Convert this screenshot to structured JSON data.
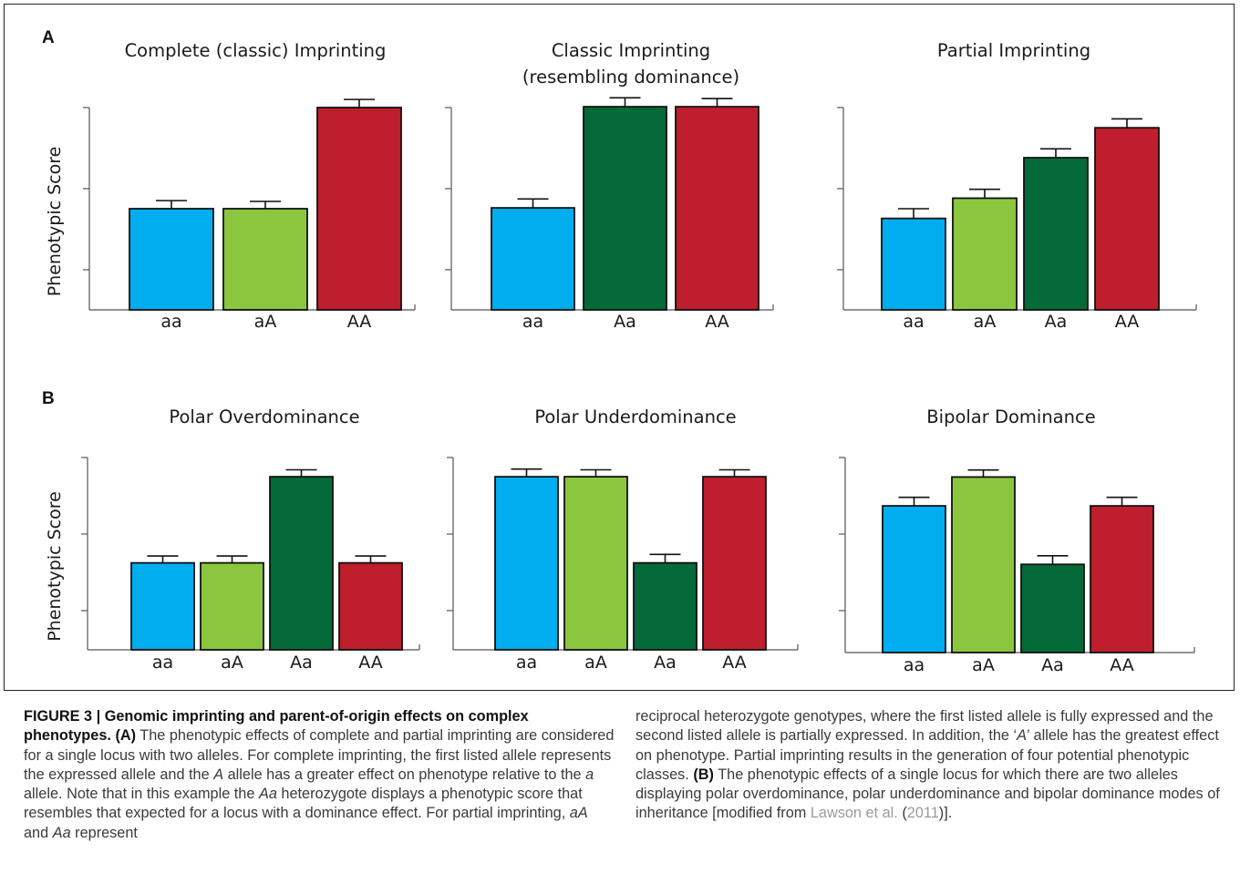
{
  "panels": [
    {
      "label": "A"
    },
    {
      "label": "B"
    }
  ],
  "ylabel": "Phenotypic Score",
  "colors": {
    "aa": "#00adef",
    "aA": "#8cc63f",
    "Aa": "#046a38",
    "AA": "#be1e2d",
    "axis": "#555555",
    "bar_edge": "#111111"
  },
  "chart_data": [
    {
      "type": "bar",
      "title": "Complete (classic) Imprinting",
      "categories": [
        "aa",
        "aA",
        "AA"
      ],
      "values": [
        1.25,
        1.25,
        2.5
      ],
      "errors": [
        0.1,
        0.09,
        0.1
      ],
      "ylim": [
        0,
        2.5
      ],
      "ylabel": "Phenotypic Score"
    },
    {
      "type": "bar",
      "title": "Classic Imprinting (resembling dominance)",
      "categories": [
        "aa",
        "Aa",
        "AA"
      ],
      "values": [
        1.26,
        2.51,
        2.51
      ],
      "errors": [
        0.11,
        0.11,
        0.1
      ],
      "ylim": [
        0,
        2.5
      ],
      "ylabel": ""
    },
    {
      "type": "bar",
      "title": "Partial Imprinting",
      "categories": [
        "aa",
        "aA",
        "Aa",
        "AA"
      ],
      "values": [
        1.13,
        1.38,
        1.88,
        2.25
      ],
      "errors": [
        0.12,
        0.11,
        0.11,
        0.11
      ],
      "ylim": [
        0,
        2.5
      ],
      "ylabel": ""
    },
    {
      "type": "bar",
      "title": "Polar Overdominance",
      "categories": [
        "aa",
        "aA",
        "Aa",
        "AA"
      ],
      "values": [
        1.13,
        1.13,
        2.25,
        1.13
      ],
      "errors": [
        0.09,
        0.09,
        0.09,
        0.09
      ],
      "ylim": [
        0,
        2.5
      ],
      "ylabel": "Phenotypic Score"
    },
    {
      "type": "bar",
      "title": "Polar Underdominance",
      "categories": [
        "aa",
        "aA",
        "Aa",
        "AA"
      ],
      "values": [
        2.25,
        2.25,
        1.13,
        2.25
      ],
      "errors": [
        0.1,
        0.09,
        0.11,
        0.09
      ],
      "ylim": [
        0,
        2.5
      ],
      "ylabel": ""
    },
    {
      "type": "bar",
      "title": "Bipolar Dominance",
      "categories": [
        "aa",
        "aA",
        "Aa",
        "AA"
      ],
      "values": [
        1.88,
        2.25,
        1.13,
        1.88
      ],
      "errors": [
        0.11,
        0.09,
        0.11,
        0.11
      ],
      "ylim": [
        0,
        2.5
      ],
      "ylabel": ""
    }
  ],
  "caption": {
    "figure_label": "FIGURE 3 | Genomic imprinting and parent-of-origin effects on complex phenotypes.",
    "part_a_label": "(A)",
    "part_a_text_1": "The phenotypic effects of complete and partial imprinting are considered for a single locus with two alleles. For complete imprinting, the first listed allele represents the expressed allele and the",
    "allele_A": "A",
    "part_a_text_2": "allele has a greater effect on phenotype relative to the",
    "allele_a": "a",
    "part_a_text_3": "allele. Note that in this example the",
    "genotype_Aa": "Aa",
    "part_a_text_4": "heterozygote displays a phenotypic score that resembles that expected for a locus with a dominance effect. For partial imprinting,",
    "genotype_aA": "aA",
    "word_and": "and",
    "genotype_Aa_2": "Aa",
    "word_represent": "represent",
    "right_text_1": "reciprocal heterozygote genotypes, where the first listed allele is fully expressed and the second listed allele is partially expressed. In addition, the ‘",
    "right_allele_A": "A",
    "right_text_2": "’ allele has the greatest effect on phenotype. Partial imprinting results in the generation of four potential phenotypic classes.",
    "part_b_label": "(B)",
    "part_b_text": "The phenotypic effects of a single locus for which there are two alleles displaying polar overdominance, polar underdominance and bipolar dominance modes of inheritance [modified from",
    "ref_author": "Lawson et al.",
    "ref_open": "(",
    "ref_year": "2011",
    "ref_close": ")]."
  }
}
